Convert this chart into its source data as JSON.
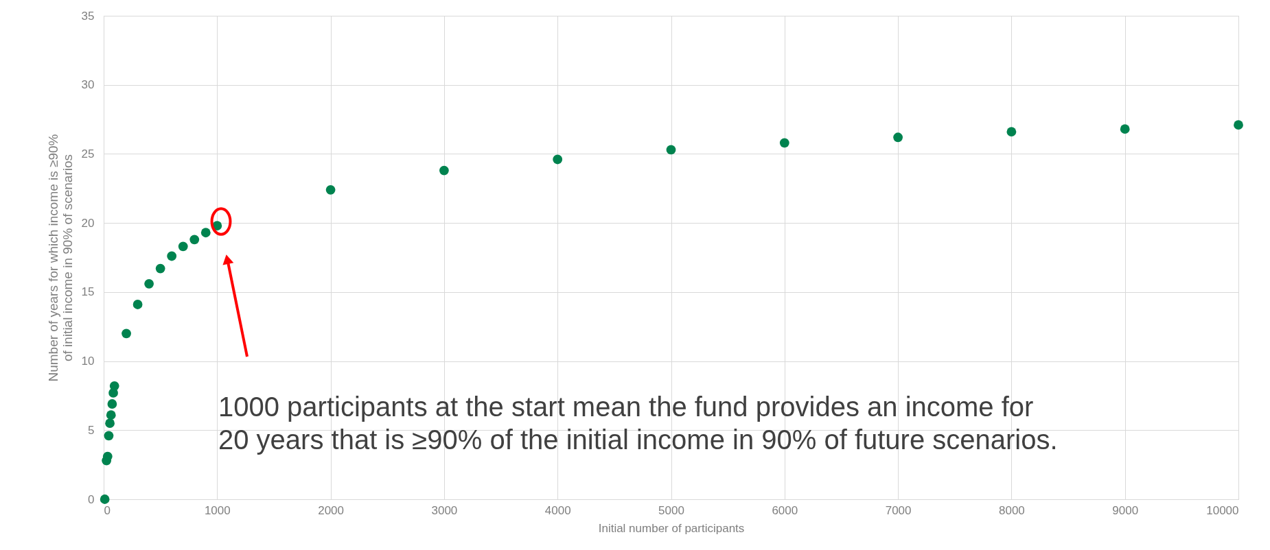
{
  "chart_data": {
    "type": "scatter",
    "xlabel": "Initial number of participants",
    "ylabel": "Number of years for which income is ≥90% of initial income in 90% of scenarios",
    "x": [
      10,
      25,
      35,
      45,
      55,
      65,
      75,
      85,
      95,
      200,
      300,
      400,
      500,
      600,
      700,
      800,
      900,
      1000,
      2000,
      3000,
      4000,
      5000,
      6000,
      7000,
      8000,
      9000,
      10000
    ],
    "series": [
      {
        "color": "#00834f",
        "values": [
          0,
          2.8,
          3.1,
          4.6,
          5.5,
          6.1,
          6.9,
          7.7,
          8.2,
          12.0,
          14.1,
          15.6,
          16.7,
          17.6,
          18.3,
          18.8,
          19.3,
          19.8,
          22.4,
          23.8,
          24.6,
          25.3,
          25.8,
          26.2,
          26.6,
          26.8,
          27.1
        ]
      }
    ],
    "xlim": [
      0,
      10000
    ],
    "xticks": [
      0,
      1000,
      2000,
      3000,
      4000,
      5000,
      6000,
      7000,
      8000,
      9000,
      10000
    ],
    "ylim": [
      0,
      35
    ],
    "yticks": [
      0,
      5,
      10,
      15,
      20,
      25,
      30,
      35
    ],
    "grid": true,
    "marker": "circle",
    "annotations": [
      "1000 participants at the start mean the fund provides an income for\n20 years that is ≥90% of the initial income in 90% of future scenarios."
    ]
  }
}
